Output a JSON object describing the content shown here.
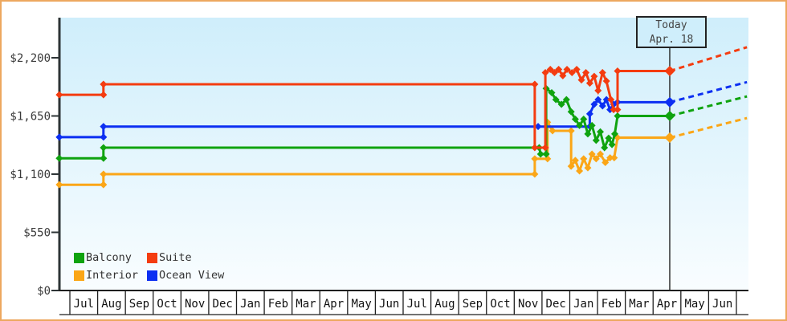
{
  "window": {
    "border_color": "#eda85f",
    "background": "#ffffff"
  },
  "chart_data": {
    "type": "line",
    "subtype": "step-price-history",
    "title": "",
    "x_axis": {
      "month_labels": [
        "Jul",
        "Aug",
        "Sep",
        "Oct",
        "Nov",
        "Dec",
        "Jan",
        "Feb",
        "Mar",
        "Apr",
        "May",
        "Jun",
        "Jul",
        "Aug",
        "Sep",
        "Oct",
        "Nov",
        "Dec",
        "Jan",
        "Feb",
        "Mar",
        "Apr",
        "May",
        "Jun"
      ]
    },
    "y_axis": {
      "ticks": [
        {
          "label": "$0",
          "value": 0
        },
        {
          "label": "$550",
          "value": 550
        },
        {
          "label": "$1,100",
          "value": 1100
        },
        {
          "label": "$1,650",
          "value": 1650
        },
        {
          "label": "$2,200",
          "value": 2200
        }
      ],
      "visible_max": 2580
    },
    "plot": {
      "bg_top": "#cfeefb",
      "bg_bottom": "#f9fdff",
      "axis_color": "#2d3436",
      "axis_text_color": "#3a3a3a",
      "month_text_color": "#111111",
      "box_line_color": "#1f1f1f",
      "today_line_color": "#222222"
    },
    "today": {
      "line1": "Today",
      "line2": "Apr. 18",
      "month_position": 21.6
    },
    "legend_position": "bottom-left",
    "series": [
      {
        "name": "Balcony",
        "color": "#0fa30f",
        "points": [
          [
            -0.38,
            1250
          ],
          [
            1.21,
            1250
          ],
          [
            1.21,
            1350
          ],
          [
            16.9,
            1350
          ],
          [
            16.95,
            1290
          ],
          [
            17.15,
            1290
          ],
          [
            17.15,
            1910
          ],
          [
            17.35,
            1870
          ],
          [
            17.5,
            1805
          ],
          [
            17.7,
            1760
          ],
          [
            17.88,
            1805
          ],
          [
            18.05,
            1690
          ],
          [
            18.2,
            1620
          ],
          [
            18.35,
            1560
          ],
          [
            18.5,
            1620
          ],
          [
            18.65,
            1480
          ],
          [
            18.8,
            1560
          ],
          [
            18.95,
            1420
          ],
          [
            19.1,
            1500
          ],
          [
            19.25,
            1350
          ],
          [
            19.4,
            1440
          ],
          [
            19.52,
            1380
          ],
          [
            19.62,
            1480
          ],
          [
            19.72,
            1650
          ],
          [
            21.6,
            1650
          ]
        ],
        "projection": {
          "end_month": 24.38,
          "end_value": 1835
        }
      },
      {
        "name": "Suite",
        "color": "#f43c10",
        "points": [
          [
            -0.38,
            1850
          ],
          [
            1.21,
            1850
          ],
          [
            1.21,
            1950
          ],
          [
            16.74,
            1950
          ],
          [
            16.74,
            1350
          ],
          [
            17.12,
            1350
          ],
          [
            17.12,
            2060
          ],
          [
            17.3,
            2090
          ],
          [
            17.45,
            2060
          ],
          [
            17.6,
            2090
          ],
          [
            17.75,
            2030
          ],
          [
            17.9,
            2090
          ],
          [
            18.08,
            2060
          ],
          [
            18.25,
            2090
          ],
          [
            18.42,
            1990
          ],
          [
            18.58,
            2060
          ],
          [
            18.72,
            1960
          ],
          [
            18.88,
            2025
          ],
          [
            19.02,
            1890
          ],
          [
            19.18,
            2060
          ],
          [
            19.32,
            1980
          ],
          [
            19.48,
            1805
          ],
          [
            19.58,
            1710
          ],
          [
            19.72,
            1710
          ],
          [
            19.72,
            2075
          ],
          [
            21.6,
            2075
          ]
        ],
        "projection": {
          "end_month": 24.38,
          "end_value": 2300
        }
      },
      {
        "name": "Interior",
        "color": "#fba617",
        "points": [
          [
            -0.38,
            1000
          ],
          [
            1.21,
            1000
          ],
          [
            1.21,
            1100
          ],
          [
            16.74,
            1100
          ],
          [
            16.74,
            1245
          ],
          [
            17.2,
            1245
          ],
          [
            17.2,
            1590
          ],
          [
            17.38,
            1510
          ],
          [
            18.05,
            1510
          ],
          [
            18.05,
            1175
          ],
          [
            18.2,
            1230
          ],
          [
            18.35,
            1130
          ],
          [
            18.5,
            1245
          ],
          [
            18.65,
            1160
          ],
          [
            18.8,
            1290
          ],
          [
            18.95,
            1245
          ],
          [
            19.1,
            1290
          ],
          [
            19.28,
            1210
          ],
          [
            19.45,
            1255
          ],
          [
            19.6,
            1255
          ],
          [
            19.72,
            1445
          ],
          [
            21.6,
            1445
          ]
        ],
        "projection": {
          "end_month": 24.38,
          "end_value": 1630
        }
      },
      {
        "name": "Ocean View",
        "color": "#0c2ff2",
        "points": [
          [
            -0.38,
            1450
          ],
          [
            1.21,
            1450
          ],
          [
            1.21,
            1550
          ],
          [
            16.86,
            1550
          ],
          [
            18.72,
            1550
          ],
          [
            18.72,
            1670
          ],
          [
            18.88,
            1760
          ],
          [
            19.02,
            1805
          ],
          [
            19.18,
            1745
          ],
          [
            19.32,
            1805
          ],
          [
            19.45,
            1710
          ],
          [
            19.58,
            1760
          ],
          [
            19.72,
            1780
          ],
          [
            21.6,
            1780
          ]
        ],
        "projection": {
          "end_month": 24.38,
          "end_value": 1970
        }
      }
    ]
  }
}
